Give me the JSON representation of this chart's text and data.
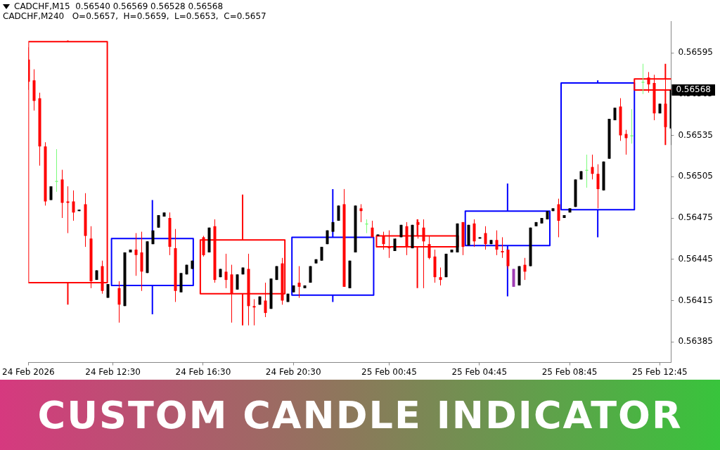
{
  "chart_data": {
    "type": "candlestick",
    "title": "CUSTOM CANDLE INDICATOR",
    "annotations": [
      "CADCHF,M15  0.56540 0.56569 0.56528 0.56568",
      "CADCHF,M240   O=0.5657,  H=0.5659,  L=0.5653,  C=0.5657",
      {
        "text": "0.56568",
        "y": 0.56568
      }
    ],
    "categories": [
      "24 Feb 2026",
      null,
      null,
      null,
      null,
      null,
      null,
      null,
      null,
      null,
      null,
      null,
      null,
      null,
      null,
      "24 Feb 12:30",
      null,
      null,
      null,
      null,
      null,
      null,
      null,
      null,
      null,
      null,
      null,
      null,
      null,
      null,
      null,
      "24 Feb 16:30",
      null,
      null,
      null,
      null,
      null,
      null,
      null,
      null,
      null,
      null,
      null,
      null,
      null,
      null,
      null,
      "24 Feb 20:30",
      null,
      null,
      null,
      null,
      null,
      null,
      null,
      null,
      null,
      null,
      null,
      null,
      null,
      null,
      null,
      null,
      "25 Feb 00:45",
      null,
      null,
      null,
      null,
      null,
      null,
      null,
      null,
      null,
      null,
      null,
      null,
      null,
      null,
      null,
      "25 Feb 04:45",
      null,
      null,
      null,
      null,
      null,
      null,
      null,
      null,
      null,
      null,
      null,
      null,
      null,
      null,
      null,
      "25 Feb 08:45",
      null,
      null,
      null,
      null,
      null,
      null,
      null,
      null,
      null,
      null,
      null,
      null,
      null,
      null,
      null,
      "25 Feb 12:45",
      null,
      null
    ],
    "ylim": [
      0.5637,
      0.56618
    ],
    "yticks": [
      0.56385,
      0.56415,
      0.56445,
      0.56475,
      0.56505,
      0.56535,
      0.56565,
      0.56595
    ],
    "series": [
      {
        "type": "candlestick",
        "ohlc": [
          [
            0.5659,
            0.56599,
            0.56568,
            0.56574
          ],
          [
            0.56575,
            0.56583,
            0.56553,
            0.5656
          ],
          [
            0.56562,
            0.56566,
            0.56513,
            0.56527
          ],
          [
            0.56527,
            0.5653,
            0.56484,
            0.56487
          ],
          [
            0.56488,
            0.56498,
            0.56488,
            0.56498
          ],
          [
            0.56502,
            0.56525,
            0.56494,
            0.56502
          ],
          [
            0.56503,
            0.5651,
            0.56475,
            0.56486
          ],
          [
            0.56487,
            0.56498,
            0.56464,
            0.56486
          ],
          [
            0.56487,
            0.56495,
            0.56473,
            0.56479
          ],
          [
            0.5648,
            0.56481,
            0.5648,
            0.56481
          ],
          [
            0.56485,
            0.56493,
            0.56454,
            0.56462
          ],
          [
            0.5646,
            0.56469,
            0.56424,
            0.56429
          ],
          [
            0.5643,
            0.56437,
            0.5643,
            0.56437
          ],
          [
            0.5644,
            0.56444,
            0.5642,
            0.56422
          ],
          [
            0.56417,
            0.56427,
            0.56417,
            0.56427
          ],
          null,
          [
            0.56424,
            0.56429,
            0.56399,
            0.56412
          ],
          [
            0.56411,
            0.5645,
            0.56411,
            0.5645
          ],
          [
            0.5645,
            0.56452,
            0.5645,
            0.56452
          ],
          [
            0.56452,
            0.56464,
            0.56433,
            0.56448
          ],
          [
            0.5645,
            0.56465,
            0.56422,
            0.56436
          ],
          [
            0.56435,
            0.56458,
            0.56435,
            0.56458
          ],
          [
            0.56456,
            0.56466,
            0.56456,
            0.56466
          ],
          [
            0.56468,
            0.56477,
            0.56468,
            0.56477
          ],
          [
            0.56476,
            0.56479,
            0.56476,
            0.56479
          ],
          [
            0.56475,
            0.56479,
            0.56448,
            0.56454
          ],
          [
            0.56453,
            0.56467,
            0.56414,
            0.56422
          ],
          [
            0.56421,
            0.56435,
            0.56421,
            0.56435
          ],
          [
            0.56434,
            0.56441,
            0.56434,
            0.56441
          ],
          [
            0.56438,
            0.56444,
            0.56438,
            0.56444
          ],
          null,
          [
            0.56461,
            0.56462,
            0.56447,
            0.56448
          ],
          [
            0.5645,
            0.56468,
            0.5645,
            0.56468
          ],
          [
            0.56469,
            0.56474,
            0.56428,
            0.5643
          ],
          [
            0.56432,
            0.56438,
            0.56432,
            0.56438
          ],
          [
            0.56436,
            0.56449,
            0.56424,
            0.5643
          ],
          [
            0.56434,
            0.56441,
            0.56399,
            0.5642
          ],
          [
            0.56423,
            0.56434,
            0.56423,
            0.56434
          ],
          [
            0.56434,
            0.56439,
            0.56434,
            0.56439
          ],
          [
            0.56438,
            0.56449,
            0.56397,
            0.56411
          ],
          [
            0.56411,
            0.56416,
            0.56397,
            0.5641
          ],
          [
            0.56412,
            0.56418,
            0.56412,
            0.56418
          ],
          [
            0.56415,
            0.56428,
            0.56403,
            0.56406
          ],
          [
            0.56409,
            0.56431,
            0.56409,
            0.56431
          ],
          [
            0.5643,
            0.5644,
            0.5643,
            0.5644
          ],
          [
            0.56442,
            0.56446,
            0.56412,
            0.56415
          ],
          [
            0.56414,
            0.5642,
            0.56414,
            0.5642
          ],
          [
            0.56421,
            0.56426,
            0.56421,
            0.56426
          ],
          [
            0.56428,
            0.5644,
            0.56417,
            0.56425
          ],
          [
            0.56424,
            0.56426,
            0.56424,
            0.56426
          ],
          [
            0.56428,
            0.5644,
            0.56428,
            0.5644
          ],
          [
            0.56442,
            0.56445,
            0.56442,
            0.56445
          ],
          [
            0.56444,
            0.56454,
            0.56444,
            0.56454
          ],
          [
            0.56456,
            0.56466,
            0.56456,
            0.56466
          ],
          [
            0.56465,
            0.56472,
            0.56465,
            0.56472
          ],
          [
            0.56473,
            0.56484,
            0.56473,
            0.56484
          ],
          [
            0.56485,
            0.56496,
            0.56425,
            0.56425
          ],
          [
            0.56424,
            0.56444,
            0.56424,
            0.56444
          ],
          [
            0.5645,
            0.56484,
            0.5645,
            0.56484
          ],
          [
            0.56482,
            0.56485,
            0.56472,
            0.5648
          ],
          [
            0.56471,
            0.56474,
            0.56464,
            0.56471
          ],
          [
            0.56468,
            0.56473,
            0.56461,
            0.56461
          ],
          [
            0.56462,
            0.56463,
            0.56462,
            0.56463
          ],
          [
            0.56462,
            0.56465,
            0.56452,
            0.56456
          ],
          [
            0.56454,
            0.56466,
            0.56446,
            0.56453
          ],
          [
            0.56451,
            0.5646,
            0.56451,
            0.5646
          ],
          [
            0.56461,
            0.5647,
            0.56461,
            0.5647
          ],
          [
            0.56469,
            0.56472,
            0.56448,
            0.56454
          ],
          [
            0.56453,
            0.5647,
            0.56453,
            0.5647
          ],
          [
            0.56472,
            0.56474,
            0.5646,
            0.5647
          ],
          [
            0.56468,
            0.56474,
            0.56424,
            0.56458
          ],
          [
            0.56456,
            0.56462,
            0.56445,
            0.56446
          ],
          [
            0.56447,
            0.56452,
            0.56428,
            0.56432
          ],
          [
            0.56432,
            0.56439,
            0.56426,
            0.5643
          ],
          [
            0.56432,
            0.56449,
            0.56432,
            0.56449
          ],
          [
            0.5645,
            0.56452,
            0.5645,
            0.56452
          ],
          [
            0.5645,
            0.56471,
            0.5645,
            0.56471
          ],
          [
            0.56472,
            0.56472,
            0.56448,
            0.56454
          ],
          [
            0.56455,
            0.5647,
            0.56455,
            0.5647
          ],
          [
            0.56471,
            0.56474,
            0.56454,
            0.56458
          ],
          [
            0.5646,
            0.56461,
            0.5646,
            0.56461
          ],
          [
            0.56464,
            0.56469,
            0.56452,
            0.56456
          ],
          [
            0.56456,
            0.56459,
            0.56456,
            0.56459
          ],
          [
            0.56459,
            0.56466,
            0.56448,
            0.56452
          ],
          [
            0.56451,
            0.56461,
            0.56446,
            0.5645
          ],
          [
            0.56452,
            0.56452,
            0.56438,
            0.5644
          ],
          [
            0.56438,
            0.56438,
            0.56425,
            0.56425
          ],
          [
            0.56426,
            0.5644,
            0.56426,
            0.5644
          ],
          [
            0.56441,
            0.56446,
            0.5643,
            0.56436
          ],
          [
            0.5644,
            0.56468,
            0.5644,
            0.56468
          ],
          [
            0.56469,
            0.56472,
            0.56469,
            0.56472
          ],
          [
            0.56471,
            0.56475,
            0.56471,
            0.56475
          ],
          [
            0.56474,
            0.5648,
            0.56474,
            0.5648
          ],
          [
            0.5648,
            0.56482,
            0.5648,
            0.56482
          ],
          [
            0.56485,
            0.56489,
            0.56461,
            0.56473
          ],
          [
            0.56475,
            0.56477,
            0.56475,
            0.56477
          ],
          [
            0.56479,
            0.56482,
            0.56479,
            0.56482
          ],
          [
            0.56483,
            0.56503,
            0.56483,
            0.56503
          ],
          [
            0.56503,
            0.56509,
            0.56503,
            0.56509
          ],
          [
            0.5651,
            0.56521,
            0.56497,
            0.5651
          ],
          [
            0.56512,
            0.56521,
            0.56503,
            0.56507
          ],
          [
            0.56507,
            0.56514,
            0.56482,
            0.56496
          ],
          [
            0.56495,
            0.56516,
            0.56495,
            0.56516
          ],
          [
            0.56518,
            0.56547,
            0.56518,
            0.56547
          ],
          [
            0.56546,
            0.56555,
            0.56546,
            0.56555
          ],
          [
            0.56556,
            0.56562,
            0.56531,
            0.56535
          ],
          [
            0.56536,
            0.56539,
            0.56521,
            0.56533
          ],
          [
            0.56535,
            0.56554,
            0.56529,
            0.56535
          ],
          null,
          [
            0.56574,
            0.56587,
            0.56565,
            0.56574
          ],
          [
            0.56577,
            0.56581,
            0.56566,
            0.56572
          ],
          [
            0.56573,
            0.56579,
            0.56546,
            0.56551
          ],
          [
            0.56551,
            0.56558,
            0.56551,
            0.56558
          ],
          [
            0.56558,
            0.56581,
            0.56539,
            0.56541
          ],
          [
            0.5654,
            0.56569,
            0.56528,
            0.56568
          ]
        ],
        "colors": [
          "#ff0000",
          "#ff0000",
          "#ff0000",
          "#ff0000",
          "#000000",
          "#7cfc7c",
          "#ff0000",
          "#ff0000",
          "#ff0000",
          "#000000",
          "#ff0000",
          "#ff0000",
          "#000000",
          "#ff0000",
          "#000000",
          null,
          "#ff0000",
          "#000000",
          "#000000",
          "#ff0000",
          "#ff0000",
          "#000000",
          "#000000",
          "#000000",
          "#000000",
          "#ff0000",
          "#ff0000",
          "#000000",
          "#000000",
          "#000000",
          null,
          "#ff0000",
          "#000000",
          "#ff0000",
          "#000000",
          "#ff0000",
          "#ff0000",
          "#000000",
          "#000000",
          "#ff0000",
          "#ff0000",
          "#000000",
          "#ff0000",
          "#000000",
          "#000000",
          "#ff0000",
          "#000000",
          "#000000",
          "#ff0000",
          "#000000",
          "#000000",
          "#000000",
          "#000000",
          "#000000",
          "#000000",
          "#000000",
          "#ff0000",
          "#000000",
          "#000000",
          "#ff0000",
          "#7cfc7c",
          "#ff0000",
          "#000000",
          "#ff0000",
          "#ff0000",
          "#000000",
          "#000000",
          "#ff0000",
          "#000000",
          "#ff0000",
          "#ff0000",
          "#ff0000",
          "#ff0000",
          "#ff0000",
          "#000000",
          "#000000",
          "#000000",
          "#ff0000",
          "#000000",
          "#ff0000",
          "#000000",
          "#ff0000",
          "#000000",
          "#ff0000",
          "#ff0000",
          "#ff0000",
          "#a03cb4",
          "#000000",
          "#ff0000",
          "#000000",
          "#000000",
          "#000000",
          "#000000",
          "#000000",
          "#ff0000",
          "#000000",
          "#000000",
          "#000000",
          "#000000",
          "#7cfc7c",
          "#ff0000",
          "#ff0000",
          "#000000",
          "#000000",
          "#000000",
          "#ff0000",
          "#ff0000",
          "#7cfc7c",
          null,
          "#7cfc7c",
          "#ff0000",
          "#ff0000",
          "#000000",
          "#ff0000",
          "#000000"
        ]
      },
      {
        "type": "candlestick",
        "line_style": "solid",
        "ohlc": [
          null,
          null,
          null,
          null,
          null,
          null,
          null,
          [
            0.56603,
            0.56604,
            0.56412,
            0.56428
          ],
          null,
          null,
          null,
          null,
          null,
          null,
          null,
          null,
          null,
          null,
          null,
          null,
          null,
          null,
          [
            0.56426,
            0.56488,
            0.56405,
            0.5646
          ],
          null,
          null,
          null,
          null,
          null,
          null,
          null,
          null,
          null,
          null,
          null,
          null,
          null,
          null,
          null,
          [
            0.56459,
            0.56492,
            0.56397,
            0.5642
          ],
          null,
          null,
          null,
          null,
          null,
          null,
          null,
          null,
          null,
          null,
          null,
          null,
          null,
          null,
          null,
          [
            0.56419,
            0.56496,
            0.56414,
            0.56461
          ],
          null,
          null,
          null,
          null,
          null,
          null,
          null,
          null,
          null,
          null,
          null,
          null,
          null,
          null,
          [
            0.56462,
            0.56474,
            0.56424,
            0.56454
          ],
          null,
          null,
          null,
          null,
          null,
          null,
          null,
          null,
          null,
          null,
          null,
          null,
          null,
          null,
          null,
          [
            0.56455,
            0.565,
            0.56418,
            0.5648
          ],
          null,
          null,
          null,
          null,
          null,
          null,
          null,
          null,
          null,
          null,
          null,
          null,
          null,
          null,
          null,
          [
            0.56481,
            0.56575,
            0.56461,
            0.56573
          ],
          null,
          null,
          null,
          null,
          null,
          null,
          null,
          null,
          null,
          null,
          null,
          [
            0.56576,
            0.56587,
            0.56528,
            0.56568
          ],
          null
        ],
        "colors": [
          null,
          null,
          null,
          null,
          null,
          null,
          null,
          "#ff0000",
          null,
          null,
          null,
          null,
          null,
          null,
          null,
          null,
          null,
          null,
          null,
          null,
          null,
          null,
          "#0000ff",
          null,
          null,
          null,
          null,
          null,
          null,
          null,
          null,
          null,
          null,
          null,
          null,
          null,
          null,
          null,
          "#ff0000",
          null,
          null,
          null,
          null,
          null,
          null,
          null,
          null,
          null,
          null,
          null,
          null,
          null,
          null,
          null,
          "#0000ff",
          null,
          null,
          null,
          null,
          null,
          null,
          null,
          null,
          null,
          null,
          null,
          null,
          null,
          null,
          "#ff0000",
          null,
          null,
          null,
          null,
          null,
          null,
          null,
          null,
          null,
          null,
          null,
          null,
          null,
          null,
          null,
          "#0000ff",
          null,
          null,
          null,
          null,
          null,
          null,
          null,
          null,
          null,
          null,
          null,
          null,
          null,
          null,
          null,
          "#0000ff",
          null,
          null,
          null,
          null,
          null,
          null,
          null,
          null,
          null,
          null,
          null,
          "#ff0000",
          null
        ]
      }
    ]
  }
}
